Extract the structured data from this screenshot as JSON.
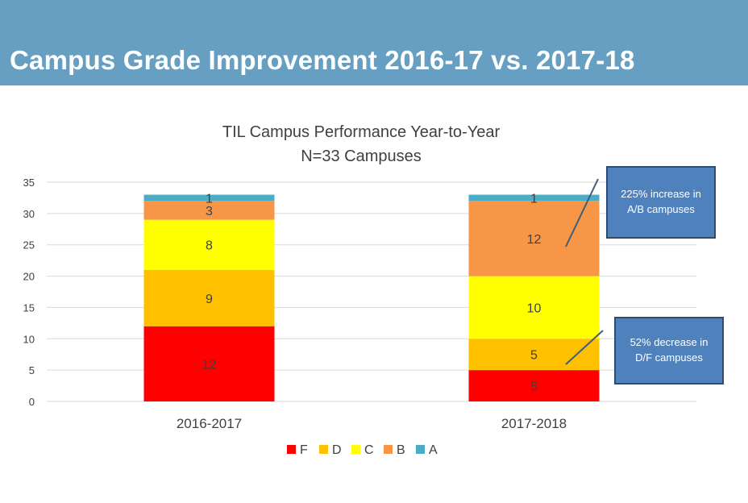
{
  "slide": {
    "title": "Campus Grade Improvement 2016-17 vs. 2017-18"
  },
  "callouts": [
    {
      "text": "225% increase in A/B campuses"
    },
    {
      "text": "52% decrease in D/F campuses"
    }
  ],
  "chart_data": {
    "type": "bar",
    "stacked": true,
    "title": "TIL Campus Performance Year-to-Year",
    "subtitle": "N=33 Campuses",
    "categories": [
      "2016-2017",
      "2017-2018"
    ],
    "series": [
      {
        "name": "F",
        "values": [
          12,
          5
        ],
        "color": "#ff0000"
      },
      {
        "name": "D",
        "values": [
          9,
          5
        ],
        "color": "#ffc000"
      },
      {
        "name": "C",
        "values": [
          8,
          10
        ],
        "color": "#ffff00"
      },
      {
        "name": "B",
        "values": [
          3,
          12
        ],
        "color": "#f79646"
      },
      {
        "name": "A",
        "values": [
          1,
          1
        ],
        "color": "#4bacc6"
      }
    ],
    "ylim": [
      0,
      35
    ],
    "yticks": [
      0,
      5,
      10,
      15,
      20,
      25,
      30,
      35
    ],
    "grid": true,
    "legend": "bottom"
  }
}
